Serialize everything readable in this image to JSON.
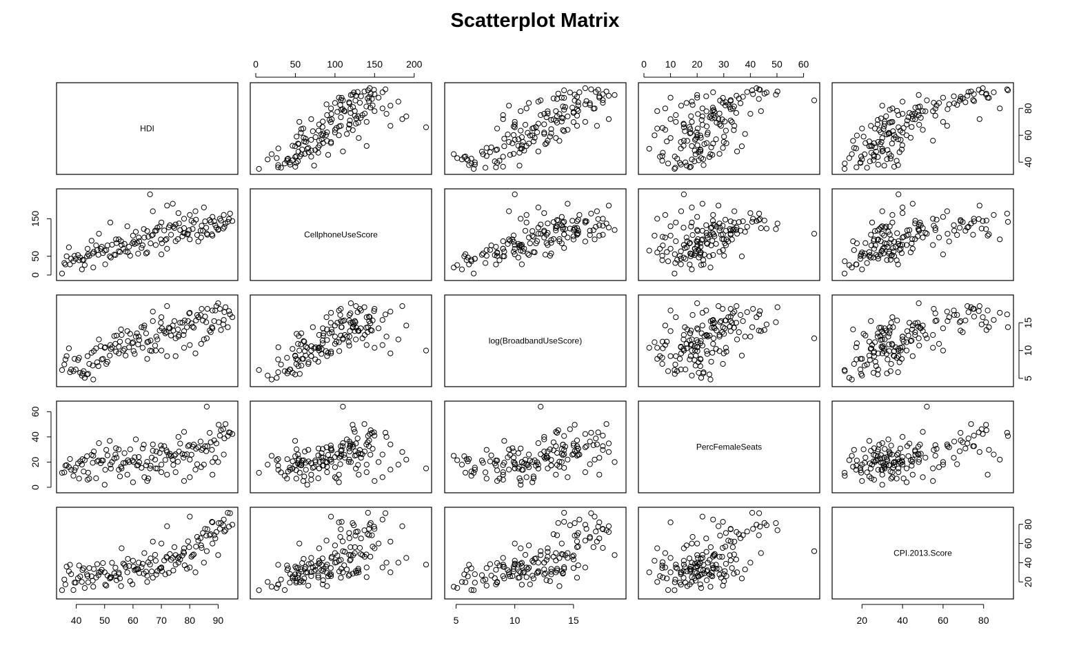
{
  "chart_data": {
    "type": "scatter",
    "title": "Scatterplot Matrix",
    "variables": [
      "HDI",
      "CellphoneUseScore",
      "log(BroadbandUseScore)",
      "PercFemaleSeats",
      "CPI.2013.Score"
    ],
    "ranges": [
      [
        35,
        95
      ],
      [
        0,
        215
      ],
      [
        4.5,
        19
      ],
      [
        0,
        64
      ],
      [
        8,
        92
      ]
    ],
    "ticks": [
      [
        40,
        50,
        60,
        70,
        80,
        90
      ],
      [
        0,
        50,
        100,
        150,
        200
      ],
      [
        5,
        10,
        15
      ],
      [
        0,
        10,
        20,
        30,
        40,
        50,
        60
      ],
      [
        20,
        40,
        60,
        80
      ]
    ],
    "ticks_left": [
      [],
      [
        0,
        50,
        150
      ],
      [],
      [
        0,
        20,
        40,
        60
      ],
      []
    ],
    "ticks_right": [
      [
        40,
        60,
        80
      ],
      [],
      [
        5,
        10,
        15
      ],
      [],
      [
        20,
        40,
        60,
        80
      ]
    ],
    "grid": false,
    "marker": "open circle",
    "observations": [
      [
        35.0,
        4.0,
        6.5,
        11.5,
        11.4
      ],
      [
        35.8,
        31.9,
        7.5,
        11.8,
        22.5
      ],
      [
        36.6,
        49.9,
        9.0,
        17.6,
        35.9
      ],
      [
        37.4,
        73.6,
        10.4,
        16.1,
        31.0
      ],
      [
        38.2,
        43.5,
        6.6,
        13.9,
        28.0
      ],
      [
        39.0,
        36.6,
        6.3,
        9.1,
        11.5
      ],
      [
        39.8,
        43.0,
        6.6,
        15.6,
        19.2
      ],
      [
        40.6,
        53.1,
        8.3,
        19.0,
        23.9
      ],
      [
        41.4,
        46.6,
        6.0,
        20.6,
        25.7
      ],
      [
        42.2,
        39.8,
        5.9,
        22.3,
        32.3
      ],
      [
        43.0,
        26.5,
        5.1,
        21.5,
        13.7
      ],
      [
        43.8,
        49.8,
        5.7,
        24.6,
        27.8
      ],
      [
        44.6,
        51.2,
        7.6,
        6.9,
        34.4
      ],
      [
        45.4,
        91.4,
        9.6,
        25.7,
        25.8
      ],
      [
        46.2,
        61.9,
        9.9,
        28.4,
        33.4
      ],
      [
        47.0,
        78.9,
        10.4,
        7.1,
        24.6
      ],
      [
        47.8,
        53.9,
        7.2,
        21.2,
        27.0
      ],
      [
        48.6,
        70.2,
        10.8,
        19.1,
        30.3
      ],
      [
        49.4,
        58.5,
        8.5,
        21.2,
        39.6
      ],
      [
        50.2,
        28.5,
        10.6,
        13.9,
        17.1
      ],
      [
        51.0,
        78.9,
        8.0,
        25.3,
        26.6
      ],
      [
        51.8,
        49.7,
        9.1,
        36.8,
        23.6
      ],
      [
        52.6,
        80.6,
        10.6,
        20.1,
        39.9
      ],
      [
        53.4,
        54.2,
        12.6,
        22.7,
        29.0
      ],
      [
        54.2,
        85.0,
        12.7,
        23.6,
        21.7
      ],
      [
        55.0,
        63.3,
        10.7,
        13.9,
        29.6
      ],
      [
        55.8,
        89.9,
        13.8,
        16.3,
        15.6
      ],
      [
        56.6,
        69.9,
        10.0,
        19.2,
        39.1
      ],
      [
        57.4,
        62.9,
        9.1,
        19.5,
        35.6
      ],
      [
        58.2,
        60.4,
        11.7,
        21.4,
        44.0
      ],
      [
        59.0,
        51.5,
        13.0,
        30.1,
        20.8
      ],
      [
        59.8,
        84.4,
        11.3,
        21.2,
        17.5
      ],
      [
        60.6,
        82.8,
        9.4,
        23.8,
        32.1
      ],
      [
        61.4,
        85.6,
        13.1,
        17.3,
        33.5
      ],
      [
        62.2,
        90.0,
        11.9,
        19.8,
        29.3
      ],
      [
        63.0,
        72.1,
        14.2,
        15.4,
        35.3
      ],
      [
        63.8,
        122.5,
        14.1,
        33.8,
        28.5
      ],
      [
        64.6,
        57.5,
        13.1,
        17.4,
        30.6
      ],
      [
        65.4,
        101.8,
        11.6,
        7.0,
        40.5
      ],
      [
        66.2,
        84.3,
        11.8,
        17.1,
        44.5
      ],
      [
        67.0,
        107.4,
        15.3,
        29.0,
        24.4
      ],
      [
        67.8,
        118.0,
        10.9,
        22.0,
        48.2
      ],
      [
        68.6,
        126.3,
        12.0,
        14.9,
        31.2
      ],
      [
        69.4,
        129.4,
        13.6,
        27.3,
        33.7
      ],
      [
        70.2,
        84.6,
        14.0,
        30.4,
        31.2
      ],
      [
        71.0,
        118.8,
        13.5,
        32.6,
        42.3
      ],
      [
        71.8,
        96.0,
        13.3,
        29.4,
        46.2
      ],
      [
        72.6,
        126.9,
        14.1,
        25.5,
        29.4
      ],
      [
        73.4,
        107.4,
        12.7,
        24.7,
        42.9
      ],
      [
        74.2,
        129.1,
        13.6,
        17.7,
        31.9
      ],
      [
        75.0,
        134.7,
        12.2,
        26.2,
        48.0
      ],
      [
        75.8,
        95.5,
        13.8,
        20.3,
        44.8
      ],
      [
        76.6,
        119.8,
        15.0,
        34.7,
        43.4
      ],
      [
        77.4,
        103.0,
        15.0,
        26.5,
        47.5
      ],
      [
        78.2,
        111.6,
        15.4,
        25.8,
        37.3
      ],
      [
        79.0,
        108.0,
        14.2,
        26.2,
        33.7
      ],
      [
        79.8,
        119.5,
        16.7,
        33.4,
        56.2
      ],
      [
        80.6,
        144.7,
        14.9,
        25.9,
        46.3
      ],
      [
        81.4,
        139.6,
        14.1,
        33.9,
        48.6
      ],
      [
        82.2,
        147.5,
        15.4,
        30.6,
        56.8
      ],
      [
        83.0,
        89.3,
        16.0,
        31.7,
        63.0
      ],
      [
        83.8,
        118.2,
        16.4,
        36.3,
        65.5
      ],
      [
        84.6,
        117.9,
        15.4,
        30.8,
        71.0
      ],
      [
        85.4,
        142.9,
        16.1,
        32.6,
        75.3
      ],
      [
        86.2,
        107.3,
        17.5,
        32.6,
        74.8
      ],
      [
        87.0,
        146.7,
        13.6,
        43.2,
        68.6
      ],
      [
        87.8,
        108.5,
        14.2,
        29.7,
        82.6
      ],
      [
        88.6,
        143.2,
        15.3,
        37.2,
        68.7
      ],
      [
        89.4,
        126.5,
        18.0,
        34.8,
        72.0
      ],
      [
        90.2,
        122.3,
        15.1,
        49.6,
        81.2
      ],
      [
        91.0,
        145.1,
        13.7,
        45.3,
        81.4
      ],
      [
        91.8,
        123.8,
        14.7,
        46.1,
        79.0
      ],
      [
        92.6,
        137.2,
        17.8,
        50.2,
        73.8
      ],
      [
        93.4,
        141.7,
        14.2,
        40.7,
        92.0
      ],
      [
        94.2,
        163.7,
        16.5,
        43.3,
        91.6
      ],
      [
        36.2,
        28.2,
        8.4,
        17.2,
        17.3
      ],
      [
        37.8,
        28.3,
        6.1,
        22.4,
        37.8
      ],
      [
        39.4,
        51.0,
        8.5,
        13.5,
        19.3
      ],
      [
        41.0,
        39.4,
        8.7,
        6.9,
        37.1
      ],
      [
        42.6,
        40.8,
        6.3,
        12.5,
        34.1
      ],
      [
        44.2,
        55.5,
        5.8,
        11.6,
        19.6
      ],
      [
        45.8,
        57.6,
        7.3,
        19.4,
        21.3
      ],
      [
        47.4,
        66.7,
        7.9,
        20.5,
        38.5
      ],
      [
        49.0,
        75.1,
        8.4,
        21.3,
        32.6
      ],
      [
        50.6,
        66.3,
        7.6,
        29.7,
        16.1
      ],
      [
        52.2,
        46.4,
        10.3,
        14.9,
        24.3
      ],
      [
        53.8,
        53.3,
        11.2,
        26.0,
        34.8
      ],
      [
        55.4,
        61.2,
        11.6,
        8.6,
        23.6
      ],
      [
        57.0,
        83.1,
        10.3,
        27.1,
        37.9
      ],
      [
        58.6,
        75.5,
        10.6,
        20.0,
        36.6
      ],
      [
        60.2,
        88.6,
        9.9,
        20.1,
        35.9
      ],
      [
        61.8,
        56.9,
        11.1,
        17.6,
        33.3
      ],
      [
        63.4,
        79.2,
        10.5,
        30.8,
        38.9
      ],
      [
        65.0,
        117.3,
        11.5,
        20.2,
        26.4
      ],
      [
        66.6,
        105.4,
        9.9,
        23.6,
        30.9
      ],
      [
        68.2,
        118.4,
        12.5,
        28.4,
        27.7
      ],
      [
        69.8,
        94.7,
        15.0,
        33.1,
        34.4
      ],
      [
        71.4,
        93.1,
        13.1,
        21.7,
        27.8
      ],
      [
        73.0,
        132.5,
        14.0,
        26.6,
        49.0
      ],
      [
        74.6,
        125.1,
        15.3,
        25.1,
        56.2
      ],
      [
        76.2,
        137.5,
        12.8,
        28.4,
        46.2
      ],
      [
        77.8,
        112.5,
        12.8,
        23.5,
        51.3
      ],
      [
        79.4,
        109.8,
        15.3,
        32.6,
        62.2
      ],
      [
        81.0,
        122.7,
        14.3,
        32.3,
        47.8
      ],
      [
        82.6,
        106.6,
        16.4,
        18.3,
        66.9
      ],
      [
        84.2,
        131.4,
        17.5,
        29.6,
        55.4
      ],
      [
        85.8,
        125.8,
        15.1,
        28.6,
        68.2
      ],
      [
        87.4,
        141.2,
        13.3,
        35.7,
        69.7
      ],
      [
        89.0,
        132.9,
        17.2,
        23.4,
        65.3
      ],
      [
        90.6,
        149.9,
        17.5,
        41.0,
        75.2
      ],
      [
        92.2,
        128.6,
        16.9,
        38.8,
        72.5
      ],
      [
        93.8,
        149.3,
        17.1,
        43.6,
        77.6
      ],
      [
        95.0,
        143.9,
        16.0,
        42.3,
        79.6
      ],
      [
        48.0,
        110.0,
        12.0,
        35.0,
        30.0
      ],
      [
        55.0,
        95.0,
        9.5,
        30.0,
        28.0
      ],
      [
        62.0,
        100.0,
        12.5,
        24.0,
        40.0
      ],
      [
        68.0,
        80.0,
        10.0,
        15.0,
        42.0
      ],
      [
        72.0,
        70.0,
        9.0,
        10.0,
        45.0
      ],
      [
        75.0,
        90.0,
        9.0,
        12.0,
        38.0
      ],
      [
        78.0,
        150.0,
        10.5,
        5.0,
        55.0
      ],
      [
        80.0,
        160.0,
        11.0,
        8.0,
        35.0
      ],
      [
        82.0,
        170.0,
        9.5,
        14.0,
        30.0
      ],
      [
        85.0,
        180.0,
        12.0,
        18.0,
        40.0
      ],
      [
        88.0,
        155.0,
        14.0,
        20.0,
        60.0
      ],
      [
        52.0,
        140.0,
        11.0,
        18.0,
        25.0
      ],
      [
        58.0,
        130.0,
        13.5,
        10.0,
        30.0
      ],
      [
        65.0,
        60.0,
        8.5,
        5.0,
        20.0
      ],
      [
        70.0,
        140.0,
        16.0,
        12.0,
        35.0
      ],
      [
        74.0,
        190.0,
        14.5,
        22.0,
        45.0
      ],
      [
        66.0,
        215.0,
        10.0,
        15.0,
        38.0
      ],
      [
        90.0,
        120.0,
        18.5,
        20.0,
        48.0
      ],
      [
        42.0,
        15.0,
        5.5,
        18.0,
        20.0
      ],
      [
        46.0,
        20.0,
        4.8,
        25.0,
        15.0
      ],
      [
        86.0,
        110.0,
        12.2,
        64.0,
        52.0
      ],
      [
        76.0,
        165.0,
        12.5,
        40.0,
        40.0
      ],
      [
        64.0,
        100.0,
        14.5,
        8.0,
        50.0
      ],
      [
        56.0,
        80.0,
        12.8,
        15.0,
        55.0
      ],
      [
        60.0,
        105.0,
        11.5,
        4.0,
        42.0
      ],
      [
        70.0,
        55.0,
        10.0,
        18.0,
        60.0
      ],
      [
        84.0,
        100.0,
        11.2,
        16.0,
        58.0
      ],
      [
        92.0,
        160.0,
        15.5,
        26.0,
        85.0
      ],
      [
        78.0,
        125.0,
        13.5,
        44.0,
        50.0
      ],
      [
        44.0,
        70.0,
        9.0,
        6.0,
        26.0
      ],
      [
        50.0,
        65.0,
        10.5,
        2.0,
        30.0
      ],
      [
        54.0,
        95.0,
        9.8,
        31.0,
        26.0
      ],
      [
        61.0,
        115.0,
        12.5,
        38.0,
        33.0
      ],
      [
        67.0,
        170.0,
        17.0,
        34.0,
        62.0
      ],
      [
        72.0,
        185.0,
        18.0,
        28.0,
        78.0
      ],
      [
        80.0,
        95.0,
        16.8,
        22.0,
        88.0
      ],
      [
        88.0,
        105.0,
        17.2,
        10.0,
        82.0
      ]
    ]
  }
}
